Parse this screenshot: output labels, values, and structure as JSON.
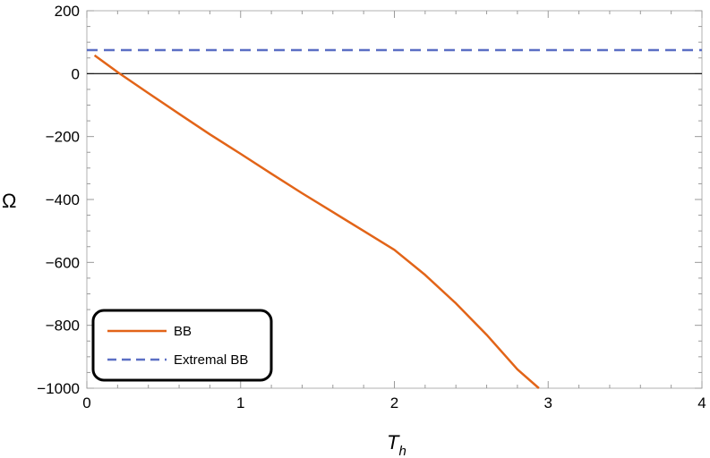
{
  "chart_data": {
    "type": "line",
    "xlabel": "T",
    "xlabel_sub": "h",
    "ylabel": "Ω",
    "xlim": [
      0,
      4
    ],
    "ylim": [
      -1000,
      200
    ],
    "x_ticks": [
      0,
      1,
      2,
      3,
      4
    ],
    "y_ticks": [
      -1000,
      -800,
      -600,
      -400,
      -200,
      0,
      200
    ],
    "x_tick_labels": [
      "0",
      "1",
      "2",
      "3",
      "4"
    ],
    "y_tick_labels": [
      "−1000",
      "−800",
      "−600",
      "−400",
      "−200",
      "0",
      "200"
    ],
    "grid": false,
    "zero_line": true,
    "legend_position": "bottom-left",
    "series": [
      {
        "name": "BB",
        "color": "#e26418",
        "style": "solid",
        "x": [
          0.05,
          0.2,
          0.4,
          0.6,
          0.8,
          1.0,
          1.2,
          1.4,
          1.6,
          1.8,
          2.0,
          2.2,
          2.4,
          2.6,
          2.8,
          2.94
        ],
        "y": [
          58,
          5,
          -62,
          -128,
          -193,
          -255,
          -318,
          -380,
          -440,
          -500,
          -560,
          -640,
          -730,
          -830,
          -940,
          -1000
        ]
      },
      {
        "name": "Extremal BB",
        "color": "#5b6fc4",
        "style": "dashed",
        "x": [
          0,
          4
        ],
        "y": [
          75,
          75
        ]
      }
    ]
  }
}
